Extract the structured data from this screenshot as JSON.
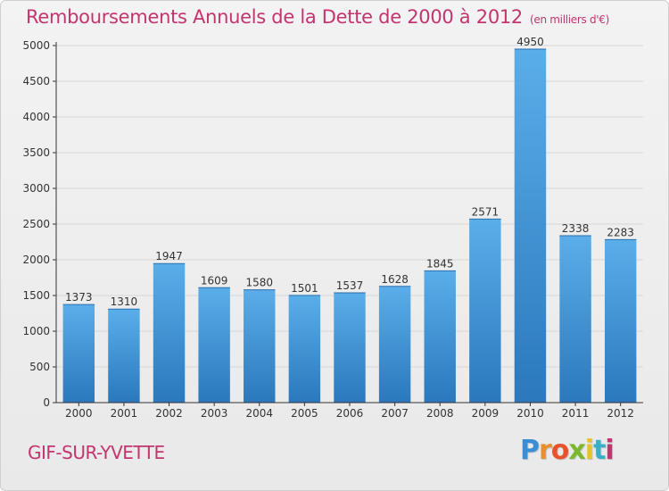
{
  "title": "Remboursements Annuels de la Dette de 2000 à 2012",
  "subtitle": "(en milliers d'€)",
  "place": "GIF-SUR-YVETTE",
  "brand": {
    "letters": [
      "P",
      "r",
      "o",
      "x",
      "i",
      "t",
      "i"
    ],
    "colors": [
      "#3a8ed6",
      "#e8912c",
      "#e8532c",
      "#7cb82f",
      "#e8c22c",
      "#3ab0c8",
      "#c4346f"
    ]
  },
  "colors": {
    "title": "#c4346f",
    "bar_top": "#5aaee9",
    "bar_bottom": "#2b78bd",
    "grid": "#d6d6d6",
    "axis": "#333333"
  },
  "chart_data": {
    "type": "bar",
    "categories": [
      "2000",
      "2001",
      "2002",
      "2003",
      "2004",
      "2005",
      "2006",
      "2007",
      "2008",
      "2009",
      "2010",
      "2011",
      "2012"
    ],
    "values": [
      1373,
      1310,
      1947,
      1609,
      1580,
      1501,
      1537,
      1628,
      1845,
      2571,
      4950,
      2338,
      2283
    ],
    "yticks": [
      0,
      500,
      1000,
      1500,
      2000,
      2500,
      3000,
      3500,
      4000,
      4500,
      5000
    ],
    "ylim": [
      0,
      5000
    ],
    "grid": true
  }
}
